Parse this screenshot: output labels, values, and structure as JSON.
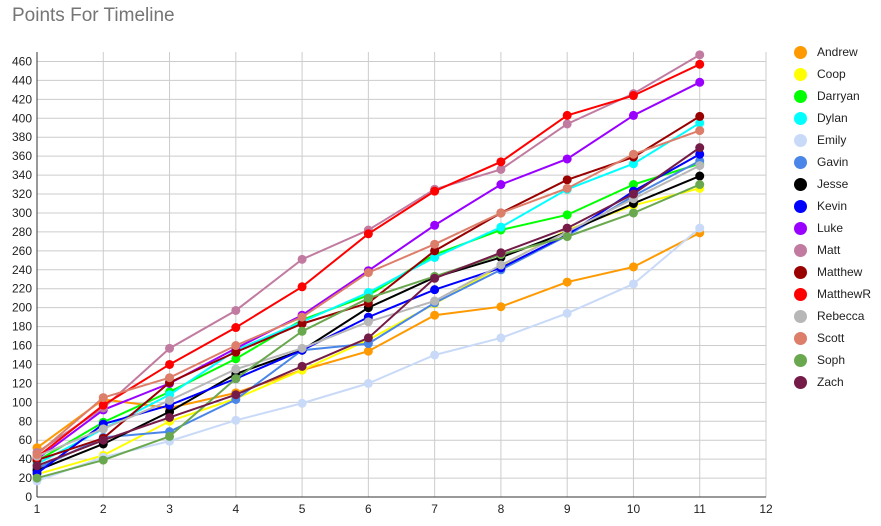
{
  "chart_data": {
    "type": "line",
    "title": "Points For Timeline",
    "xlabel": "",
    "ylabel": "",
    "xlim": [
      1,
      12
    ],
    "ylim": [
      0,
      470
    ],
    "x_ticks": [
      1,
      2,
      3,
      4,
      5,
      6,
      7,
      8,
      9,
      10,
      11,
      12
    ],
    "y_ticks": [
      0,
      20,
      40,
      60,
      80,
      100,
      120,
      140,
      160,
      180,
      200,
      220,
      240,
      260,
      280,
      300,
      320,
      340,
      360,
      380,
      400,
      420,
      440,
      460
    ],
    "grid": true,
    "legend_position": "right",
    "x": [
      1,
      2,
      3,
      4,
      5,
      6,
      7,
      8,
      9,
      10,
      11
    ],
    "series": [
      {
        "name": "Andrew",
        "color": "#ff9900",
        "values": [
          52,
          103,
          94,
          110,
          134,
          154,
          192,
          201,
          227,
          243,
          279
        ]
      },
      {
        "name": "Coop",
        "color": "#ffff00",
        "values": [
          24,
          44,
          80,
          104,
          134,
          166,
          204,
          244,
          282,
          308,
          326
        ]
      },
      {
        "name": "Darryan",
        "color": "#00ff00",
        "values": [
          38,
          79,
          111,
          146,
          187,
          213,
          256,
          282,
          298,
          330,
          352
        ]
      },
      {
        "name": "Dylan",
        "color": "#00ffff",
        "values": [
          35,
          72,
          108,
          155,
          185,
          216,
          253,
          285,
          325,
          352,
          395
        ]
      },
      {
        "name": "Emily",
        "color": "#c9daf8",
        "values": [
          17,
          42,
          59,
          81,
          99,
          120,
          150,
          168,
          194,
          225,
          284
        ]
      },
      {
        "name": "Gavin",
        "color": "#4a86e8",
        "values": [
          30,
          63,
          69,
          103,
          155,
          162,
          205,
          240,
          276,
          318,
          355
        ]
      },
      {
        "name": "Jesse",
        "color": "#000000",
        "values": [
          28,
          56,
          90,
          130,
          155,
          200,
          232,
          253,
          280,
          310,
          339
        ]
      },
      {
        "name": "Kevin",
        "color": "#0000ff",
        "values": [
          25,
          77,
          97,
          125,
          155,
          190,
          219,
          242,
          277,
          323,
          362
        ]
      },
      {
        "name": "Luke",
        "color": "#9900ff",
        "values": [
          40,
          92,
          120,
          157,
          192,
          239,
          287,
          330,
          357,
          403,
          438
        ]
      },
      {
        "name": "Matt",
        "color": "#c27ba0",
        "values": [
          47,
          94,
          157,
          197,
          251,
          282,
          325,
          346,
          394,
          426,
          467
        ]
      },
      {
        "name": "Matthew",
        "color": "#990000",
        "values": [
          39,
          62,
          121,
          153,
          183,
          205,
          260,
          300,
          335,
          359,
          402
        ]
      },
      {
        "name": "MatthewR",
        "color": "#ff0000",
        "values": [
          42,
          97,
          140,
          179,
          222,
          278,
          323,
          354,
          403,
          424,
          457
        ]
      },
      {
        "name": "Rebecca",
        "color": "#b7b7b7",
        "values": [
          43,
          72,
          102,
          135,
          157,
          185,
          207,
          245,
          280,
          315,
          350
        ]
      },
      {
        "name": "Scott",
        "color": "#dd7e6b",
        "values": [
          45,
          105,
          126,
          160,
          190,
          237,
          267,
          300,
          326,
          362,
          387
        ]
      },
      {
        "name": "Soph",
        "color": "#6aa84f",
        "values": [
          20,
          39,
          64,
          125,
          175,
          210,
          233,
          256,
          275,
          300,
          330
        ]
      },
      {
        "name": "Zach",
        "color": "#741b47",
        "values": [
          33,
          60,
          84,
          108,
          138,
          168,
          231,
          258,
          284,
          320,
          369
        ]
      }
    ]
  }
}
